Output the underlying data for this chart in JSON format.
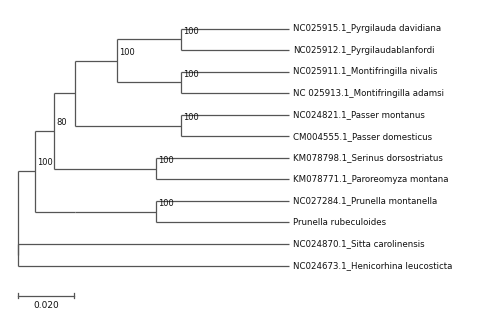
{
  "taxa_ordered": [
    "NC025915.1_Pyrgilauda davidiana",
    "NC025912.1_Pyrgilaudablanfordi",
    "NC025911.1_Montifringilla nivalis",
    "NC 025913.1_Montifringilla adamsi",
    "NC024821.1_Passer montanus",
    "CM004555.1_Passer domesticus",
    "KM078798.1_Serinus dorsostriatus",
    "KM078771.1_Paroreomyza montana",
    "NC027284.1_Prunella montanella",
    "Prunella rubeculoides",
    "NC024870.1_Sitta carolinensis",
    "NC024673.1_Henicorhina leucosticta"
  ],
  "background_color": "#ffffff",
  "line_color": "#555555",
  "text_color": "#111111",
  "label_fontsize": 6.2,
  "bootstrap_fontsize": 6.0,
  "scale_bar_value": "0.020",
  "scale_bar_fontsize": 6.5
}
